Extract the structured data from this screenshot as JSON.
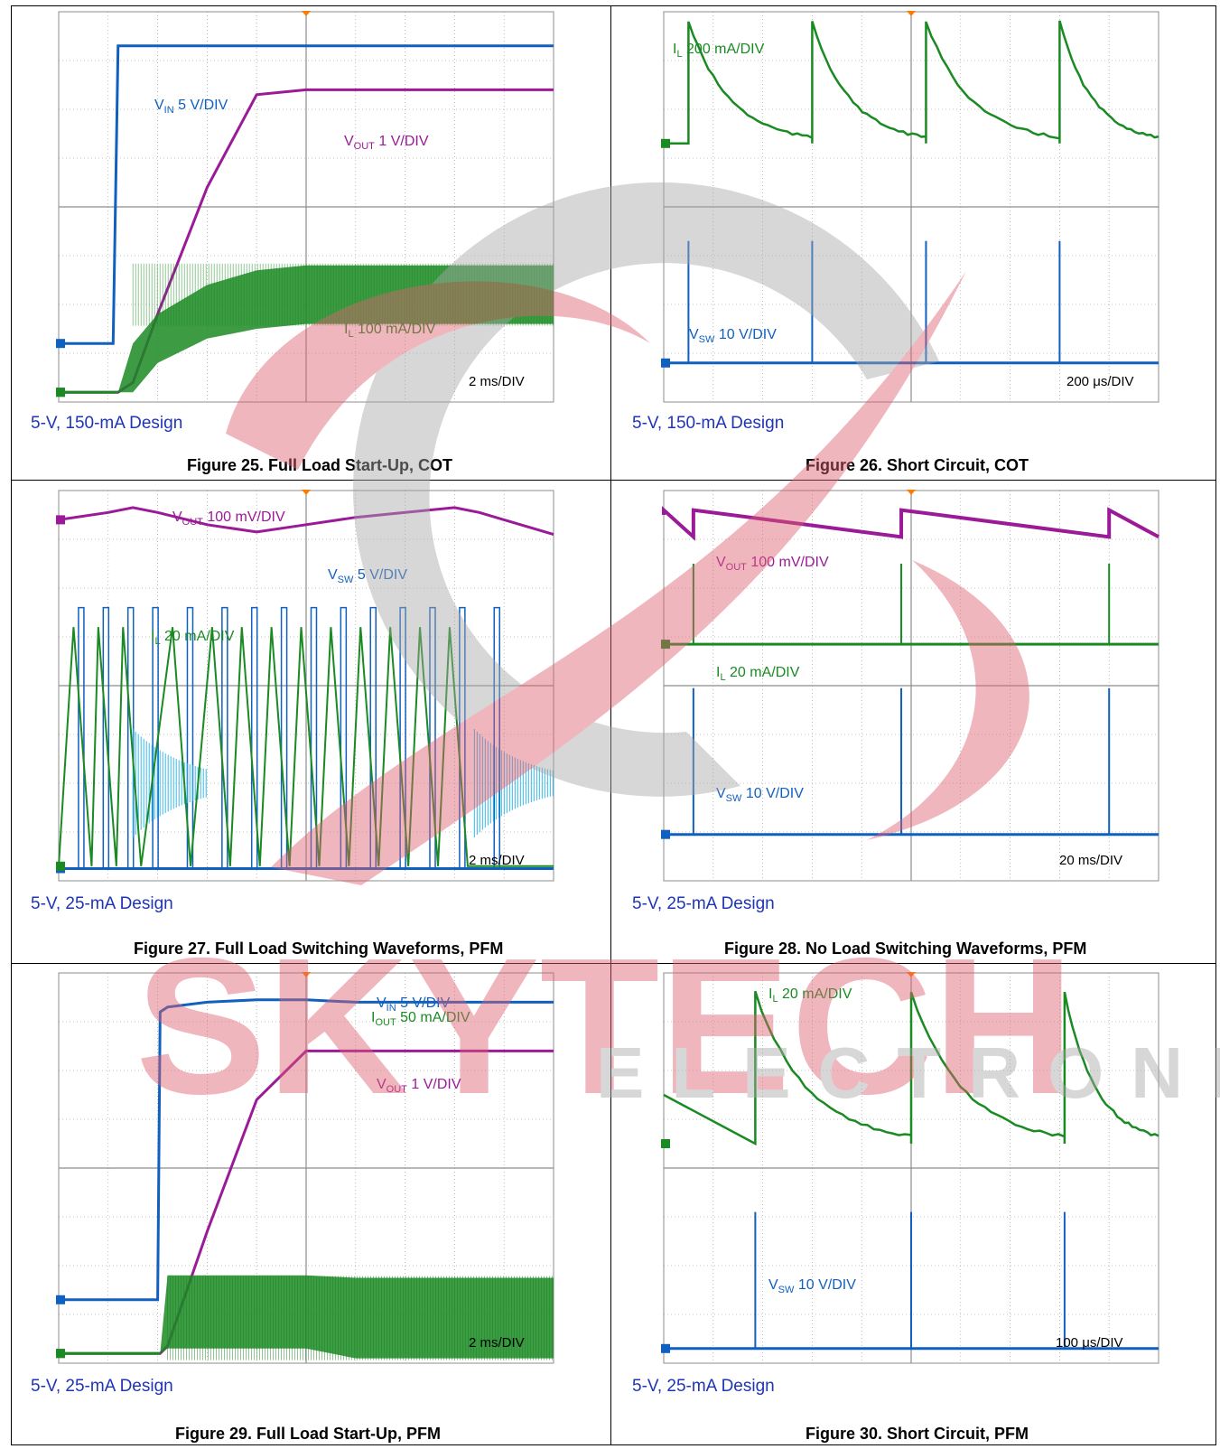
{
  "colors": {
    "grid": "#8c8c8c",
    "vin": "#1060c0",
    "vsw": "#1060c0",
    "vout": "#9a1a98",
    "il": "#1a8a22",
    "design_text": "#1f35b4",
    "watermark_red": "#e06070",
    "watermark_gray": "#a8a8a8"
  },
  "watermark": {
    "brand": "SKYTECH",
    "sub": "ELECTRONIC"
  },
  "chart_data": [
    {
      "type": "line",
      "caption": "Figure 25. Full Load Start-Up, COT",
      "design": "5-V, 150-mA Design",
      "timebase": "2 ms/DIV",
      "grid": true,
      "grid_divisions": {
        "x": 10,
        "y": 8
      },
      "x": [
        0,
        1.1,
        1.2,
        1.5,
        2,
        3,
        4,
        5,
        6,
        7,
        8,
        9,
        10
      ],
      "series": [
        {
          "key": "vin",
          "name": "VIN",
          "sub": "IN",
          "scale": "5 V/DIV",
          "display": "line",
          "values": [
            1.2,
            1.2,
            7.3,
            7.3,
            7.3,
            7.3,
            7.3,
            7.3,
            7.3,
            7.3,
            7.3,
            7.3,
            7.3
          ]
        },
        {
          "key": "vout",
          "name": "VOUT",
          "sub": "OUT",
          "scale": "1 V/DIV",
          "display": "line",
          "values": [
            0.2,
            0.2,
            0.2,
            0.4,
            1.8,
            4.4,
            6.3,
            6.4,
            6.4,
            6.4,
            6.4,
            6.4,
            6.4
          ]
        },
        {
          "key": "il",
          "name": "IL",
          "sub": "L",
          "scale": "100 mA/DIV",
          "display": "band",
          "upper": [
            0.2,
            0.2,
            0.2,
            1.2,
            1.8,
            2.4,
            2.7,
            2.8,
            2.8,
            2.8,
            2.8,
            2.8,
            2.8
          ],
          "lower": [
            0.2,
            0.2,
            0.2,
            0.2,
            0.8,
            1.3,
            1.5,
            1.6,
            1.6,
            1.6,
            1.6,
            1.6,
            1.6
          ]
        }
      ]
    },
    {
      "type": "line",
      "caption": "Figure 26. Short Circuit, COT",
      "design": "5-V, 150-mA Design",
      "timebase": "200 μs/DIV",
      "grid": true,
      "grid_divisions": {
        "x": 10,
        "y": 8
      },
      "series": [
        {
          "key": "il",
          "name": "IL",
          "sub": "L",
          "scale": "200 mA/DIV",
          "display": "decay",
          "baseline": 5.3,
          "peak": 7.8,
          "starts": [
            0.5,
            3.0,
            5.3,
            8.0
          ],
          "end_tail": 7.9
        },
        {
          "key": "vsw",
          "name": "VSW",
          "sub": "SW",
          "scale": "10 V/DIV",
          "display": "spikes",
          "baseline": 0.8,
          "spike_level": 3.3,
          "spikes": [
            0.5,
            3.0,
            5.3,
            8.0
          ]
        }
      ]
    },
    {
      "type": "line",
      "caption": "Figure 27. Full Load Switching Waveforms, PFM",
      "design": "5-V, 25-mA Design",
      "timebase": "2 ms/DIV",
      "grid": true,
      "grid_divisions": {
        "x": 10,
        "y": 8
      },
      "series": [
        {
          "key": "vout",
          "name": "VOUT",
          "sub": "OUT",
          "scale": "100 mV/DIV",
          "display": "line",
          "x": [
            0,
            1,
            1.5,
            2,
            3,
            4,
            5,
            6,
            7,
            8,
            8.5,
            9,
            10
          ],
          "values": [
            7.4,
            7.55,
            7.65,
            7.55,
            7.3,
            7.15,
            7.3,
            7.45,
            7.55,
            7.65,
            7.55,
            7.4,
            7.1
          ]
        },
        {
          "key": "vsw",
          "name": "VSW",
          "sub": "SW",
          "scale": "5 V/DIV",
          "display": "bursts",
          "baseline": 0.25,
          "high": 5.6,
          "pulses": [
            0.4,
            0.9,
            1.4,
            1.9,
            2.6,
            3.3,
            3.9,
            4.5,
            5.1,
            5.7,
            6.3,
            6.9,
            7.5,
            8.1,
            8.8
          ]
        },
        {
          "key": "il",
          "name": "IL",
          "sub": "L",
          "scale": "20 mA/DIV",
          "display": "sawtooth",
          "baseline": 0.3,
          "peak": 5.2,
          "ramps": [
            0.3,
            0.8,
            1.3,
            2.3,
            3.1,
            3.7,
            4.3,
            4.9,
            5.5,
            6.1,
            6.7,
            7.3,
            7.9
          ]
        }
      ]
    },
    {
      "type": "line",
      "caption": "Figure 28. No Load Switching Waveforms, PFM",
      "design": "5-V, 25-mA Design",
      "timebase": "20 ms/DIV",
      "grid": true,
      "grid_divisions": {
        "x": 10,
        "y": 8
      },
      "series": [
        {
          "key": "vout",
          "name": "VOUT",
          "sub": "OUT",
          "scale": "100 mV/DIV",
          "display": "sawtooth_down",
          "high": 7.6,
          "low": 7.05,
          "resets": [
            0.6,
            4.8,
            9.0
          ]
        },
        {
          "key": "il",
          "name": "IL",
          "sub": "L",
          "scale": "20 mA/DIV",
          "display": "spikes",
          "baseline": 4.85,
          "spike_level": 6.5,
          "spikes": [
            0.6,
            4.8,
            9.0
          ]
        },
        {
          "key": "vsw",
          "name": "VSW",
          "sub": "SW",
          "scale": "10 V/DIV",
          "display": "spikes",
          "baseline": 0.95,
          "spike_level": 3.95,
          "spikes": [
            0.6,
            4.8,
            9.0
          ]
        }
      ]
    },
    {
      "type": "line",
      "caption": "Figure 29. Full Load Start-Up, PFM",
      "design": "5-V, 25-mA Design",
      "timebase": "2 ms/DIV",
      "grid": true,
      "grid_divisions": {
        "x": 10,
        "y": 8
      },
      "x": [
        0,
        2.0,
        2.05,
        2.2,
        3,
        4,
        5,
        6,
        7,
        8,
        9,
        10
      ],
      "series": [
        {
          "key": "vin",
          "name": "VIN",
          "sub": "IN",
          "scale": "5 V/DIV",
          "display": "line",
          "values": [
            1.3,
            1.3,
            7.2,
            7.3,
            7.4,
            7.45,
            7.45,
            7.4,
            7.4,
            7.4,
            7.4,
            7.4
          ]
        },
        {
          "key": "vout",
          "name": "VOUT",
          "sub": "OUT",
          "scale": "1 V/DIV",
          "display": "line",
          "values": [
            0.2,
            0.2,
            0.2,
            0.35,
            2.7,
            5.4,
            6.4,
            6.4,
            6.4,
            6.4,
            6.4,
            6.4
          ]
        },
        {
          "key": "iout",
          "name": "IOUT",
          "sub": "OUT",
          "scale": "50 mA/DIV",
          "display": "band",
          "upper": [
            0.2,
            0.2,
            0.2,
            1.8,
            1.8,
            1.8,
            1.8,
            1.75,
            1.75,
            1.75,
            1.75,
            1.75
          ],
          "lower": [
            0.2,
            0.2,
            0.2,
            0.3,
            0.3,
            0.3,
            0.3,
            0.1,
            0.1,
            0.1,
            0.1,
            0.1
          ]
        }
      ]
    },
    {
      "type": "line",
      "caption": "Figure 30. Short Circuit, PFM",
      "design": "5-V, 25-mA Design",
      "timebase": "100 μs/DIV",
      "grid": true,
      "grid_divisions": {
        "x": 10,
        "y": 8
      },
      "series": [
        {
          "key": "il",
          "name": "IL",
          "sub": "L",
          "scale": "20 mA/DIV",
          "display": "decay",
          "start_level": 5.5,
          "baseline": 4.5,
          "peak": 7.6,
          "starts": [
            1.85,
            5.0,
            8.1
          ],
          "end_tail": 5.3
        },
        {
          "key": "vsw",
          "name": "VSW",
          "sub": "SW",
          "scale": "10 V/DIV",
          "display": "spikes",
          "baseline": 0.3,
          "spike_level": 3.1,
          "spikes": [
            1.85,
            5.0,
            8.1
          ]
        }
      ]
    }
  ]
}
